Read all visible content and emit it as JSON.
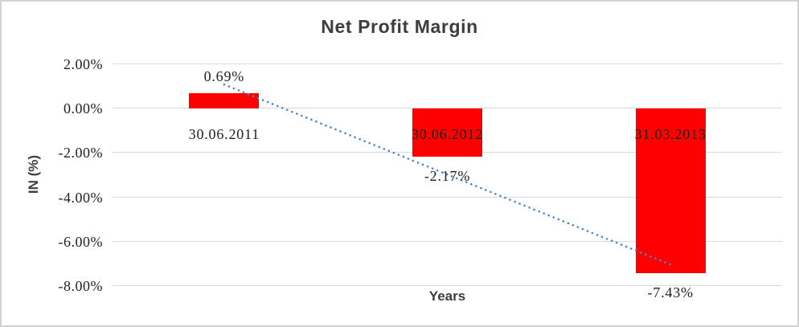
{
  "frame": {
    "background": "#ffffff",
    "border_color": "#d2d2d2"
  },
  "chart_data": {
    "type": "bar",
    "title": "Net Profit Margin",
    "xlabel": "Years",
    "ylabel": "IN (%)",
    "categories": [
      "30.06.2011",
      "30.06.2012",
      "31.03.2013"
    ],
    "series": [
      {
        "name": "Net Profit Margin",
        "values": [
          0.69,
          -2.17,
          -7.43
        ]
      }
    ],
    "value_labels": [
      "0.69%",
      "-2.17%",
      "-7.43%"
    ],
    "y_ticks": [
      {
        "value": 2,
        "label": "2.00%"
      },
      {
        "value": 0,
        "label": "0.00%"
      },
      {
        "value": -2,
        "label": "-2.00%"
      },
      {
        "value": -4,
        "label": "-4.00%"
      },
      {
        "value": -6,
        "label": "-6.00%"
      },
      {
        "value": -8,
        "label": "-8.00%"
      }
    ],
    "ylim": [
      -8,
      2
    ],
    "grid": true,
    "legend": false,
    "bar_color": "#ff0000",
    "gridline_color": "#d9d9d9",
    "label_color": "#1f1f1f",
    "axis_title_color": "#3d3d3d",
    "trendline": {
      "type": "linear",
      "style": "dotted",
      "color": "#4e86c4",
      "start_value": 1.09,
      "end_value": -7.03
    }
  }
}
